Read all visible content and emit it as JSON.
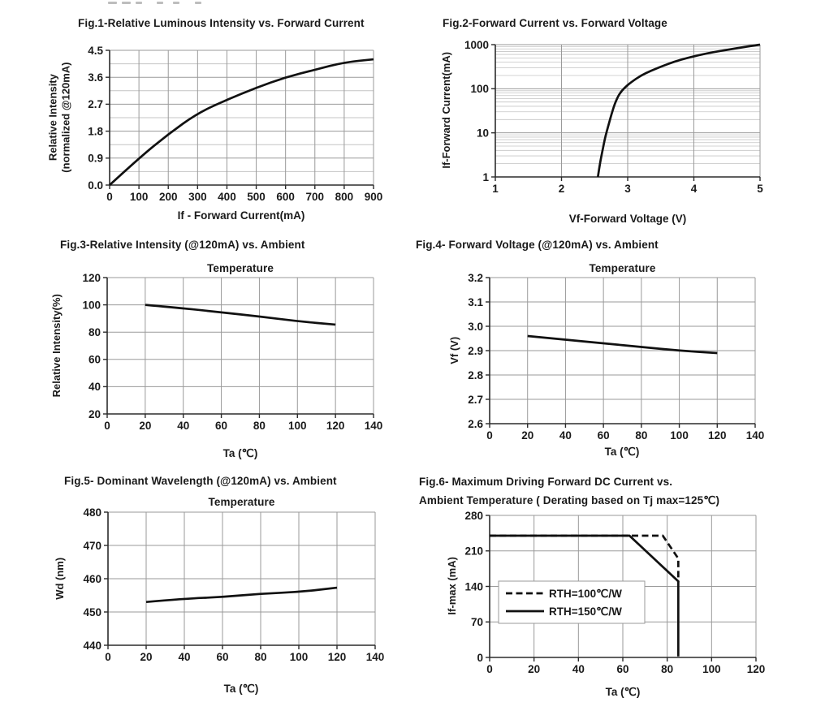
{
  "page": {
    "background": "#ffffff",
    "text_color": "#1a1a1a",
    "curve_color": "#111111",
    "grid_color": "#9a9a9a",
    "minor_grid_color": "#c4c4c4"
  },
  "chart_data": [
    {
      "id": "fig1",
      "type": "line",
      "title": "Fig.1-Relative Luminous Intensity vs. Forward Current",
      "xlabel": "If - Forward Current(mA)",
      "ylabel": "Relative Intensity",
      "ylabel2": "(normalized @120mA)",
      "xlim": [
        0,
        900
      ],
      "ylim": [
        0,
        4.5
      ],
      "grid": true,
      "x_tick_values": [
        0,
        100,
        200,
        300,
        400,
        500,
        600,
        700,
        800,
        900
      ],
      "x_tick_labels": [
        "0",
        "100",
        "200",
        "300",
        "400",
        "500",
        "600",
        "700",
        "800",
        "900"
      ],
      "y_tick_values": [
        0,
        0.9,
        1.8,
        2.7,
        3.6,
        4.5
      ],
      "y_tick_labels": [
        "0.0",
        "0.9",
        "1.8",
        "2.7",
        "3.6",
        "4.5"
      ],
      "y_minor_step": 0.45,
      "series": [
        {
          "name": "relative-luminous-intensity",
          "style": "solid",
          "smooth": true,
          "points": [
            [
              0,
              0
            ],
            [
              100,
              0.9
            ],
            [
              200,
              1.7
            ],
            [
              300,
              2.4
            ],
            [
              400,
              2.85
            ],
            [
              500,
              3.25
            ],
            [
              600,
              3.6
            ],
            [
              700,
              3.85
            ],
            [
              800,
              4.1
            ],
            [
              900,
              4.2
            ]
          ]
        }
      ]
    },
    {
      "id": "fig2",
      "type": "line",
      "title": "Fig.2-Forward Current vs. Forward Voltage",
      "xlabel": "Vf-Forward Voltage (V)",
      "ylabel": "If-Forward Current(mA)",
      "xlim": [
        1,
        5
      ],
      "ylim": [
        1,
        1000
      ],
      "yscale": "log",
      "grid": true,
      "x_tick_values": [
        1,
        2,
        3,
        4,
        5
      ],
      "x_tick_labels": [
        "1",
        "2",
        "3",
        "4",
        "5"
      ],
      "y_tick_values": [
        1,
        10,
        100,
        1000
      ],
      "y_tick_labels": [
        "1",
        "10",
        "100",
        "1000"
      ],
      "series": [
        {
          "name": "forward-current",
          "style": "solid",
          "smooth": true,
          "points": [
            [
              2.55,
              1
            ],
            [
              2.58,
              2
            ],
            [
              2.62,
              4
            ],
            [
              2.66,
              8
            ],
            [
              2.71,
              15
            ],
            [
              2.76,
              28
            ],
            [
              2.81,
              48
            ],
            [
              2.87,
              75
            ],
            [
              2.95,
              105
            ],
            [
              3.05,
              140
            ],
            [
              3.2,
              200
            ],
            [
              3.35,
              255
            ],
            [
              3.5,
              315
            ],
            [
              3.7,
              410
            ],
            [
              3.9,
              500
            ],
            [
              4.1,
              590
            ],
            [
              4.3,
              680
            ],
            [
              4.5,
              760
            ],
            [
              4.75,
              880
            ],
            [
              5,
              1000
            ]
          ]
        }
      ]
    },
    {
      "id": "fig3",
      "type": "line",
      "title": "Fig.3-Relative Intensity (@120mA) vs. Ambient",
      "title2": "Temperature",
      "xlabel": "Ta (℃)",
      "ylabel": "Relative Intensity(%)",
      "xlim": [
        0,
        140
      ],
      "ylim": [
        20,
        120
      ],
      "grid": true,
      "x_tick_values": [
        0,
        20,
        40,
        60,
        80,
        100,
        120,
        140
      ],
      "x_tick_labels": [
        "0",
        "20",
        "40",
        "60",
        "80",
        "100",
        "120",
        "140"
      ],
      "y_tick_values": [
        20,
        40,
        60,
        80,
        100,
        120
      ],
      "y_tick_labels": [
        "20",
        "40",
        "60",
        "80",
        "100",
        "120"
      ],
      "series": [
        {
          "name": "relative-intensity-vs-ta",
          "style": "solid",
          "smooth": true,
          "points": [
            [
              20,
              100
            ],
            [
              40,
              97.5
            ],
            [
              60,
              94.5
            ],
            [
              80,
              91.5
            ],
            [
              100,
              88
            ],
            [
              120,
              85.5
            ]
          ]
        }
      ]
    },
    {
      "id": "fig4",
      "type": "line",
      "title": "Fig.4- Forward Voltage (@120mA) vs. Ambient",
      "title2": "Temperature",
      "xlabel": "Ta (℃)",
      "ylabel": "Vf (V)",
      "xlim": [
        0,
        140
      ],
      "ylim": [
        2.6,
        3.2
      ],
      "grid": true,
      "x_tick_values": [
        0,
        20,
        40,
        60,
        80,
        100,
        120,
        140
      ],
      "x_tick_labels": [
        "0",
        "20",
        "40",
        "60",
        "80",
        "100",
        "120",
        "140"
      ],
      "y_tick_values": [
        2.6,
        2.7,
        2.8,
        2.9,
        3.0,
        3.1,
        3.2
      ],
      "y_tick_labels": [
        "2.6",
        "2.7",
        "2.8",
        "2.9",
        "3.0",
        "3.1",
        "3.2"
      ],
      "series": [
        {
          "name": "forward-voltage-vs-ta",
          "style": "solid",
          "smooth": true,
          "points": [
            [
              20,
              2.96
            ],
            [
              40,
              2.945
            ],
            [
              60,
              2.93
            ],
            [
              80,
              2.915
            ],
            [
              100,
              2.9
            ],
            [
              120,
              2.89
            ]
          ]
        }
      ]
    },
    {
      "id": "fig5",
      "type": "line",
      "title": "Fig.5- Dominant Wavelength (@120mA) vs. Ambient",
      "title2": "Temperature",
      "xlabel": "Ta (℃)",
      "ylabel": "Wd (nm)",
      "xlim": [
        0,
        140
      ],
      "ylim": [
        440,
        480
      ],
      "grid": true,
      "x_tick_values": [
        0,
        20,
        40,
        60,
        80,
        100,
        120,
        140
      ],
      "x_tick_labels": [
        "0",
        "20",
        "40",
        "60",
        "80",
        "100",
        "120",
        "140"
      ],
      "y_tick_values": [
        440,
        450,
        460,
        470,
        480
      ],
      "y_tick_labels": [
        "440",
        "450",
        "460",
        "470",
        "480"
      ],
      "series": [
        {
          "name": "dominant-wavelength-vs-ta",
          "style": "solid",
          "smooth": true,
          "points": [
            [
              20,
              453
            ],
            [
              40,
              454
            ],
            [
              60,
              454.5
            ],
            [
              80,
              455.5
            ],
            [
              100,
              456
            ],
            [
              120,
              457.3
            ]
          ]
        }
      ]
    },
    {
      "id": "fig6",
      "type": "line",
      "title": "Fig.6- Maximum Driving Forward DC Current vs.",
      "title2": "Ambient Temperature ( Derating based on Tj max=125℃)",
      "xlabel": "Ta (℃)",
      "ylabel": "If-max (mA)",
      "xlim": [
        0,
        120
      ],
      "ylim": [
        0,
        280
      ],
      "grid": true,
      "legend": true,
      "legend_position": "inside-left",
      "x_tick_values": [
        0,
        20,
        40,
        60,
        80,
        100,
        120
      ],
      "x_tick_labels": [
        "0",
        "20",
        "40",
        "60",
        "80",
        "100",
        "120"
      ],
      "y_tick_values": [
        0,
        70,
        140,
        210,
        280
      ],
      "y_tick_labels": [
        "0",
        "70",
        "140",
        "210",
        "280"
      ],
      "series": [
        {
          "name": "RTH=100℃/W",
          "style": "dashed",
          "smooth": false,
          "points": [
            [
              0,
              240
            ],
            [
              78,
              240
            ],
            [
              85,
              195
            ],
            [
              85,
              148
            ]
          ]
        },
        {
          "name": "RTH=150℃/W",
          "style": "solid",
          "smooth": false,
          "points": [
            [
              0,
              240
            ],
            [
              63,
              240
            ],
            [
              85,
              150
            ],
            [
              85,
              2
            ]
          ]
        }
      ]
    }
  ]
}
